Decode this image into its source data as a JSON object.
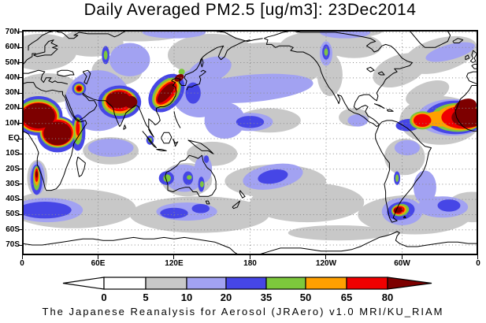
{
  "title": "Daily Averaged PM2.5 [ug/m3]: 23Dec2014",
  "caption": "The Japanese Reanalysis for Aerosol (JRAero) v1.0 MRI/KU_RIAM",
  "map": {
    "lat_tick_labels": [
      "70N",
      "60N",
      "50N",
      "40N",
      "30N",
      "20N",
      "10N",
      "EQ",
      "10S",
      "20S",
      "30S",
      "40S",
      "50S",
      "60S",
      "70S"
    ],
    "lon_tick_labels": [
      "0",
      "60E",
      "120E",
      "180",
      "120W",
      "60W",
      "0"
    ]
  },
  "colorbar": {
    "tick_labels": [
      "0",
      "5",
      "10",
      "20",
      "35",
      "50",
      "65",
      "80"
    ],
    "segment_colors": [
      "#FFFFFF",
      "#C8C8C8",
      "#A2A2F2",
      "#4646E6",
      "#7DC83C",
      "#FFA000",
      "#F00000"
    ],
    "under_arrow_color": "#FFFFFF",
    "over_arrow_color": "#7D0000",
    "outline_color": "#000000"
  },
  "chart_data": {
    "type": "heatmap",
    "title": "Daily Averaged PM2.5 [ug/m3]: 23Dec2014",
    "variable": "PM2.5 daily average",
    "units": "ug/m3",
    "date": "23Dec2014",
    "source_caption": "The Japanese Reanalysis for Aerosol (JRAero) v1.0 MRI/KU_RIAM",
    "projection": "global equirectangular, longitude 0E eastward to 0E",
    "lon_axis_ticks": [
      "0",
      "60E",
      "120E",
      "180",
      "120W",
      "60W",
      "0"
    ],
    "lat_axis_ticks": [
      "70N",
      "60N",
      "50N",
      "40N",
      "30N",
      "20N",
      "10N",
      "EQ",
      "10S",
      "20S",
      "30S",
      "40S",
      "50S",
      "60S",
      "70S"
    ],
    "lat_range_shown": [
      -77,
      72
    ],
    "contour_levels": [
      0,
      5,
      10,
      20,
      35,
      50,
      65,
      80
    ],
    "level_colors": [
      "#FFFFFF",
      "#C8C8C8",
      "#A2A2F2",
      "#4646E6",
      "#7DC83C",
      "#FFA000",
      "#F00000"
    ],
    "over_80_color": "#7D0000",
    "grid": "dotted 10-degree latitude and 60-degree longitude lines",
    "hotspots": [
      {
        "region": "West and Central Africa",
        "lon": "0E-40E",
        "lat": "5S-23N",
        "value_ugm3": ">80"
      },
      {
        "region": "Tropical Atlantic off West Africa",
        "lon": "40W-0",
        "lat": "5N-25N",
        "value_ugm3": ">80"
      },
      {
        "region": "Northern India / Indo-Gangetic Plain",
        "lon": "67E-91E",
        "lat": "18N-31N",
        "value_ugm3": ">80"
      },
      {
        "region": "Eastern China (SW-NE band to NE China)",
        "lon": "104E-130E",
        "lat": "20N-44N",
        "value_ugm3": ">80"
      },
      {
        "region": "Mesopotamia (Iraq / Persian Gulf)",
        "lon": "42E-48E",
        "lat": "30N-36N",
        "value_ugm3": ">80"
      },
      {
        "region": "Southern Patagonia / Tierra del Fuego",
        "lon": "68W-58W",
        "lat": "50S-44S",
        "value_ugm3": ">80"
      },
      {
        "region": "Southwest Africa coastal streak (Namibia)",
        "lon": "9E-14E",
        "lat": "36S-18S",
        "value_ugm3": "50-80"
      },
      {
        "region": "East Africa column (Ethiopia-Somalia)",
        "lon": "40E-48E",
        "lat": "4S-14N",
        "value_ugm3": "35-65"
      },
      {
        "region": "Australia interior spots (west, centre, east)",
        "value_ugm3": "35-50"
      },
      {
        "region": "Central Siberia streak",
        "lon": "~66E",
        "lat": "50N-60N",
        "value_ugm3": "35-50"
      },
      {
        "region": "Western Canada spot",
        "lon": "~120W",
        "lat": "~57N",
        "value_ugm3": "35-50"
      },
      {
        "region": "Sumatra spot",
        "value_ugm3": "35-50"
      },
      {
        "region": "North Pacific mid-latitude band",
        "value_ugm3": "10-20"
      },
      {
        "region": "Equatorial central Pacific patch",
        "value_ugm3": "20-35"
      },
      {
        "region": "Southern Ocean bands (S Atlantic / S Indian / S of Australia)",
        "value_ugm3": "10-35"
      },
      {
        "region": "Polar regions and most continental interiors",
        "value_ugm3": "0-10"
      }
    ]
  }
}
